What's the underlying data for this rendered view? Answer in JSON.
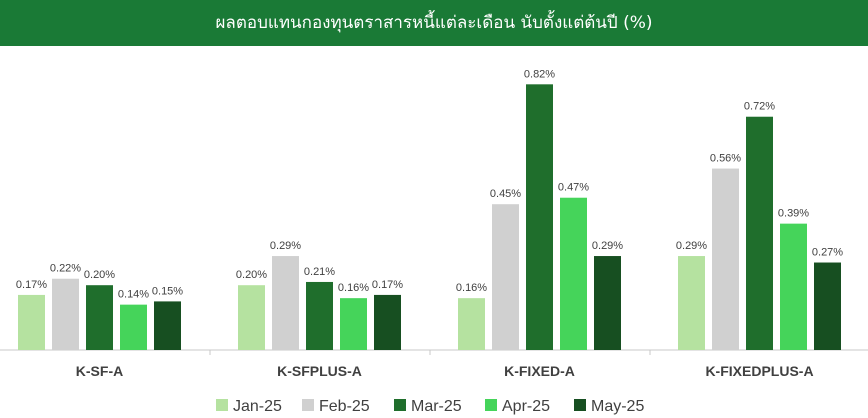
{
  "title": "ผลตอบแทนกองทุนตราสารหนี้แต่ละเดือน นับตั้งแต่ต้นปี (%)",
  "colors": {
    "header": "#1a7a36",
    "Jan-25": "#b5e2a0",
    "Feb-25": "#d0d0d0",
    "Mar-25": "#1f6e2c",
    "Apr-25": "#45d45a",
    "May-25": "#174f21"
  },
  "chart_data": {
    "type": "bar",
    "title": "ผลตอบแทนกองทุนตราสารหนี้แต่ละเดือน นับตั้งแต่ต้นปี (%)",
    "categories": [
      "K-SF-A",
      "K-SFPLUS-A",
      "K-FIXED-A",
      "K-FIXEDPLUS-A"
    ],
    "series": [
      {
        "name": "Jan-25",
        "values": [
          0.17,
          0.2,
          0.16,
          0.29
        ]
      },
      {
        "name": "Feb-25",
        "values": [
          0.22,
          0.29,
          0.45,
          0.56
        ]
      },
      {
        "name": "Mar-25",
        "values": [
          0.2,
          0.21,
          0.82,
          0.72
        ]
      },
      {
        "name": "Apr-25",
        "values": [
          0.14,
          0.16,
          0.47,
          0.39
        ]
      },
      {
        "name": "May-25",
        "values": [
          0.15,
          0.17,
          0.29,
          0.27
        ]
      }
    ],
    "value_suffix": "%",
    "ylim": [
      0,
      0.85
    ],
    "grid": false,
    "legend_position": "bottom"
  }
}
